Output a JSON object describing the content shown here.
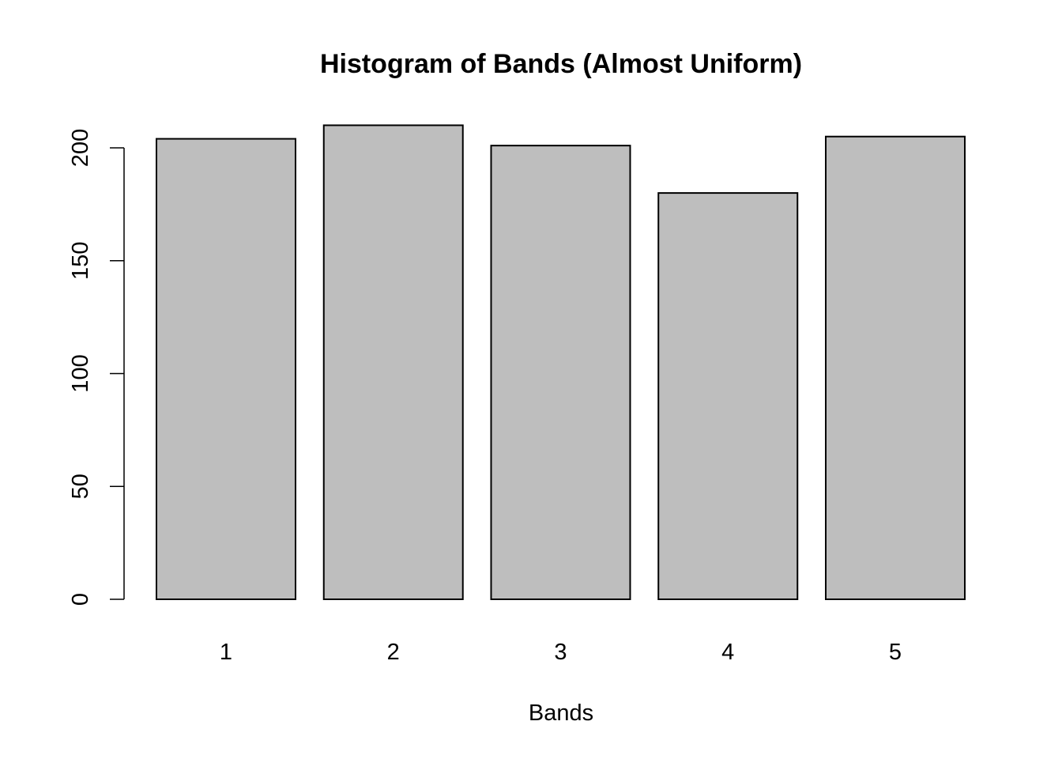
{
  "chart_data": {
    "type": "bar",
    "title": "Histogram of Bands (Almost Uniform)",
    "xlabel": "Bands",
    "ylabel": "",
    "categories": [
      "1",
      "2",
      "3",
      "4",
      "5"
    ],
    "values": [
      204,
      210,
      201,
      180,
      205
    ],
    "ylim": [
      0,
      200
    ],
    "y_ticks": [
      "0",
      "50",
      "100",
      "150",
      "200"
    ],
    "bar_color": "#bebebe",
    "border_color": "#000000",
    "grid": false,
    "legend": "none"
  }
}
